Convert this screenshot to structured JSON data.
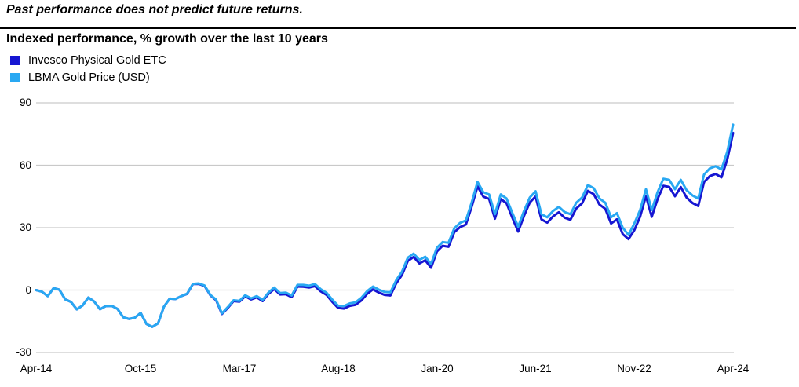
{
  "header": {
    "disclaimer": "Past performance does not predict future returns."
  },
  "chart": {
    "subtitle": "Indexed performance, % growth over the last 10 years",
    "legend": [
      {
        "label": "Invesco Physical Gold ETC",
        "color": "#1616D2"
      },
      {
        "label": "LBMA Gold Price (USD)",
        "color": "#29A8F2"
      }
    ],
    "gridline_color": "#C9C9C9"
  },
  "chart_data": {
    "type": "line",
    "title": "Indexed performance, % growth over the last 10 years",
    "x_unit": "months from Apr-2014 to Apr-2024",
    "x_tick_labels": [
      "Apr-14",
      "Oct-15",
      "Mar-17",
      "Aug-18",
      "Jan-20",
      "Jun-21",
      "Nov-22",
      "Apr-24"
    ],
    "x_tick_month_index": [
      0,
      18,
      35,
      52,
      69,
      86,
      103,
      120
    ],
    "y_ticks": [
      90,
      60,
      30,
      0,
      -30
    ],
    "ylim": [
      -30,
      90
    ],
    "grid": true,
    "legend_position": "top-left",
    "series": [
      {
        "name": "Invesco Physical Gold ETC",
        "color": "#1616D2",
        "values": [
          0,
          -0.8,
          -2.9,
          0.9,
          0.2,
          -4.4,
          -5.7,
          -9.3,
          -7.4,
          -3.6,
          -5.5,
          -9.2,
          -7.7,
          -7.6,
          -9.0,
          -13.1,
          -13.9,
          -13.3,
          -11.0,
          -16.3,
          -17.7,
          -16.0,
          -8.0,
          -4.1,
          -4.3,
          -2.9,
          -1.8,
          2.9,
          3.0,
          2.0,
          -2.5,
          -4.9,
          -11.5,
          -8.6,
          -5.3,
          -5.6,
          -3.0,
          -4.5,
          -3.5,
          -5.3,
          -1.8,
          0.5,
          -2.1,
          -2.0,
          -3.4,
          1.7,
          1.6,
          1.2,
          1.9,
          -0.6,
          -2.3,
          -5.7,
          -8.6,
          -8.9,
          -7.6,
          -7.1,
          -5.0,
          -1.8,
          0.3,
          -1.2,
          -2.3,
          -2.6,
          3.2,
          7.3,
          14.0,
          15.9,
          12.8,
          14.3,
          10.7,
          18.5,
          21.3,
          20.8,
          27.8,
          30.3,
          31.5,
          40.1,
          49.9,
          44.9,
          43.8,
          34.3,
          43.8,
          41.7,
          34.7,
          28.1,
          35.6,
          42.1,
          45.0,
          34.0,
          32.4,
          35.4,
          37.4,
          34.8,
          33.8,
          39.2,
          41.7,
          47.7,
          46.1,
          41.1,
          39.0,
          32.0,
          34.0,
          26.9,
          24.5,
          28.8,
          35.3,
          45.3,
          35.2,
          43.7,
          50.1,
          49.6,
          45.1,
          49.5,
          44.5,
          41.9,
          40.4,
          51.9,
          54.8,
          55.8,
          54.2,
          62.7,
          75.5
        ]
      },
      {
        "name": "LBMA Gold Price (USD)",
        "color": "#29A8F2",
        "values": [
          0,
          -0.8,
          -2.9,
          0.9,
          0.2,
          -4.4,
          -5.7,
          -9.3,
          -7.4,
          -3.6,
          -5.5,
          -9.2,
          -7.7,
          -7.6,
          -9.0,
          -13.1,
          -13.9,
          -13.3,
          -11.0,
          -16.3,
          -17.7,
          -16.0,
          -8.0,
          -4.1,
          -4.3,
          -2.9,
          -1.7,
          3.0,
          3.2,
          2.2,
          -2.3,
          -4.6,
          -11.2,
          -8.2,
          -4.9,
          -5.2,
          -2.5,
          -4.0,
          -2.9,
          -4.7,
          -1.2,
          1.2,
          -1.4,
          -1.2,
          -2.6,
          2.5,
          2.5,
          2.1,
          2.9,
          0.4,
          -1.3,
          -4.6,
          -7.5,
          -7.7,
          -6.4,
          -5.9,
          -3.7,
          -0.5,
          1.7,
          0.2,
          -0.9,
          -1.1,
          4.7,
          8.9,
          15.6,
          17.5,
          14.5,
          16.0,
          12.5,
          20.3,
          23.1,
          22.7,
          29.7,
          32.3,
          33.5,
          42.1,
          52.0,
          47.0,
          46.0,
          36.5,
          46.0,
          44.0,
          37.0,
          30.5,
          38.0,
          44.5,
          47.5,
          36.5,
          35.0,
          38.0,
          40.0,
          37.5,
          36.5,
          42.0,
          44.5,
          50.5,
          49.0,
          44.0,
          42.0,
          35.0,
          37.0,
          30.0,
          26.5,
          32.0,
          38.5,
          48.5,
          38.5,
          47.0,
          53.5,
          53.0,
          48.5,
          53.0,
          48.0,
          45.5,
          44.0,
          55.5,
          58.5,
          59.5,
          58.0,
          66.5,
          79.5
        ]
      }
    ]
  }
}
